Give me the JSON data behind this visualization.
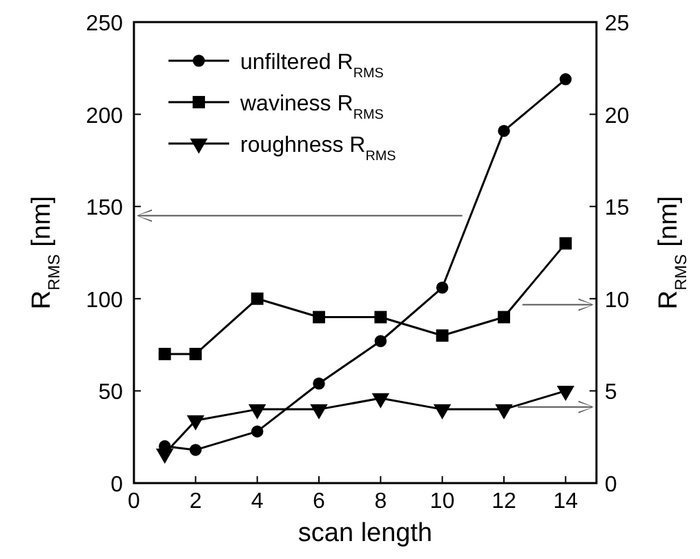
{
  "chart_data": {
    "type": "line",
    "xlabel": "scan length",
    "ylabel": "R$_{RMS}$ [nm]",
    "y2label": "R$_{RMS}$ [nm]",
    "x": [
      1,
      2,
      4,
      6,
      8,
      10,
      12,
      14
    ],
    "xlim": [
      0,
      15
    ],
    "xticks": [
      0,
      2,
      4,
      6,
      8,
      10,
      12,
      14
    ],
    "ylim": [
      0,
      250
    ],
    "yticks": [
      0,
      50,
      100,
      150,
      200,
      250
    ],
    "y2lim": [
      0,
      25
    ],
    "y2ticks": [
      0,
      5,
      10,
      15,
      20,
      25
    ],
    "series": [
      {
        "name": "unfiltered R$_{RMS}$",
        "color": "#000000",
        "marker": "circle",
        "values": [
          20,
          18,
          28,
          54,
          77,
          106,
          191,
          219
        ]
      },
      {
        "name": "waviness R$_{RMS}$",
        "color": "#000000",
        "marker": "square",
        "axis": "y2",
        "values": [
          7,
          7,
          10,
          9,
          9,
          8,
          9,
          13
        ]
      },
      {
        "name": "roughness R$_{RMS}$",
        "color": "#000000",
        "marker": "triangle",
        "axis": "y2",
        "values": [
          1.6,
          3.4,
          4,
          4,
          4.6,
          4,
          4,
          5
        ]
      }
    ],
    "legend": "top left",
    "grid": false,
    "line_style": "solid"
  }
}
